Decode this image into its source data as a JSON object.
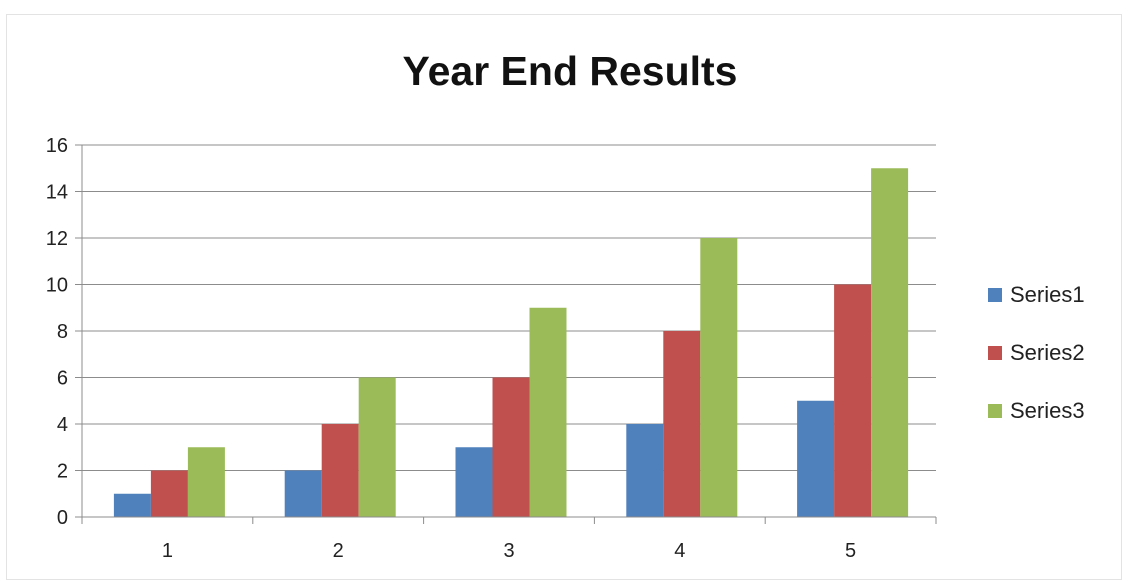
{
  "chart_data": {
    "type": "bar",
    "title": "Year End Results",
    "categories": [
      "1",
      "2",
      "3",
      "4",
      "5"
    ],
    "series": [
      {
        "name": "Series1",
        "color": "#4f81bd",
        "values": [
          1,
          2,
          3,
          4,
          5
        ]
      },
      {
        "name": "Series2",
        "color": "#c0504d",
        "values": [
          2,
          4,
          6,
          8,
          10
        ]
      },
      {
        "name": "Series3",
        "color": "#9bbb59",
        "values": [
          3,
          6,
          9,
          12,
          15
        ]
      }
    ],
    "ylim": [
      0,
      16
    ],
    "yticks": [
      "0",
      "2",
      "4",
      "6",
      "8",
      "10",
      "12",
      "14",
      "16"
    ],
    "xlabel": "",
    "ylabel": "",
    "grid": "horizontal",
    "legend_position": "right"
  }
}
